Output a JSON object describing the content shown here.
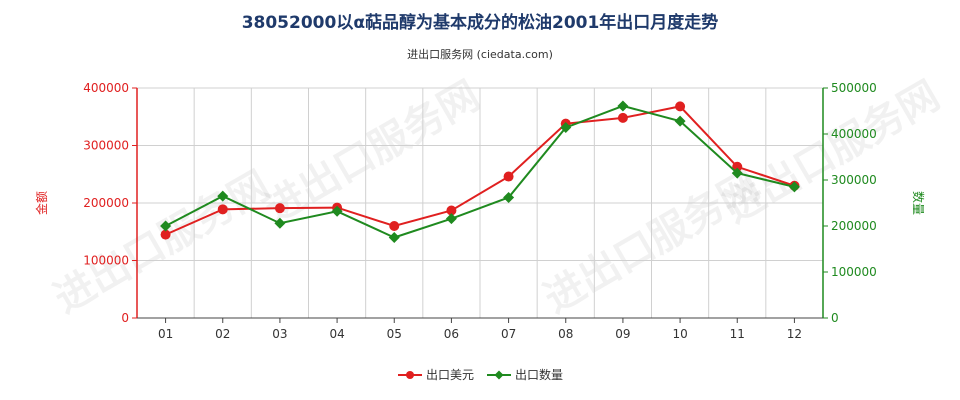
{
  "chart_data": {
    "type": "line",
    "title": "38052000以α萜品醇为基本成分的松油2001年出口月度走势",
    "subtitle": "进出口服务网 (ciedata.com)",
    "watermark": "进出口服务网",
    "categories": [
      "01",
      "02",
      "03",
      "04",
      "05",
      "06",
      "07",
      "08",
      "09",
      "10",
      "11",
      "12"
    ],
    "left_axis": {
      "label": "金额",
      "ylim": [
        0,
        400000
      ],
      "ticks": [
        "0",
        "100000",
        "200000",
        "300000",
        "400000"
      ],
      "color": "#e02020"
    },
    "right_axis": {
      "label": "数量",
      "ylim": [
        0,
        500000
      ],
      "ticks": [
        "0",
        "100000",
        "200000",
        "300000",
        "400000",
        "500000"
      ],
      "color": "#1f8a1f"
    },
    "series": [
      {
        "name": "出口美元",
        "axis": "left",
        "color": "#e02020",
        "marker": "circle",
        "values": [
          145000,
          189000,
          191000,
          192000,
          160000,
          187000,
          246000,
          338000,
          348000,
          368000,
          263000,
          230000
        ]
      },
      {
        "name": "出口数量",
        "axis": "right",
        "color": "#1f8a1f",
        "marker": "diamond",
        "values": [
          200000,
          265000,
          206000,
          232000,
          175000,
          216000,
          262000,
          414000,
          461000,
          428000,
          315000,
          285000
        ]
      }
    ],
    "legend_position": "bottom-center",
    "grid": true
  }
}
